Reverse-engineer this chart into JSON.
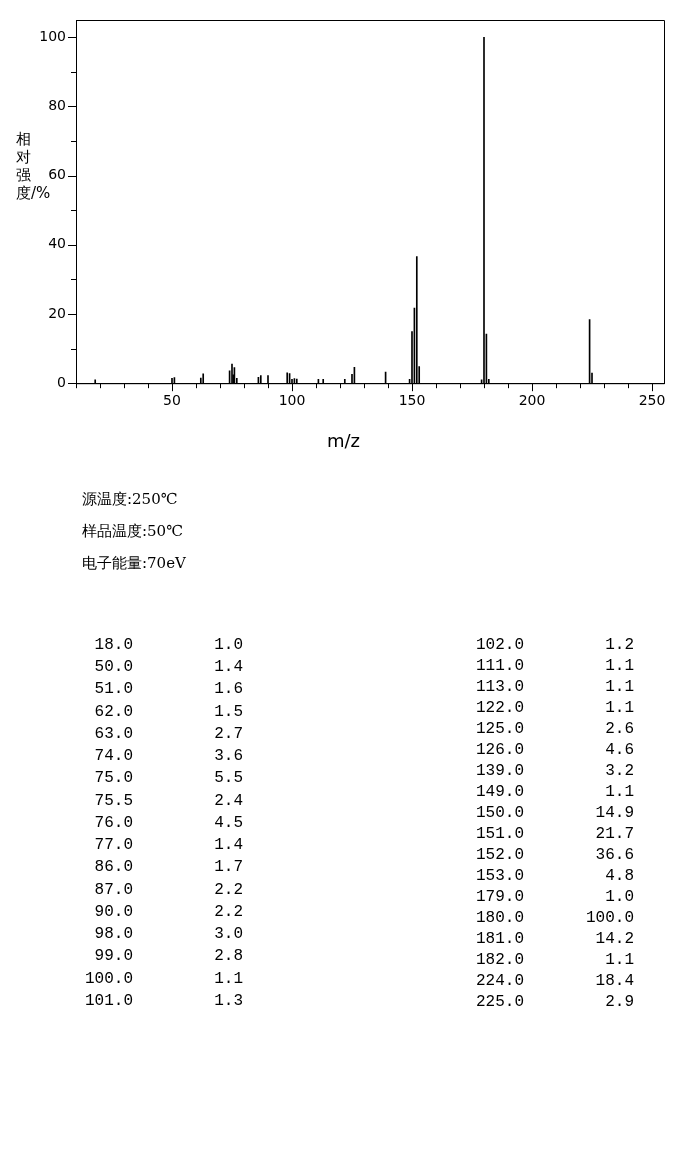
{
  "chart_data": [
    {
      "type": "bar",
      "xlabel": "m/z",
      "ylabel": "相对强度/%",
      "x": [
        18,
        50,
        51,
        62,
        63,
        74,
        75,
        75.5,
        76,
        77,
        86,
        87,
        90,
        98,
        99,
        100,
        101,
        102,
        111,
        113,
        122,
        125,
        126,
        139,
        149,
        150,
        151,
        152,
        153,
        179,
        180,
        181,
        182,
        224,
        225
      ],
      "values": [
        1.0,
        1.4,
        1.6,
        1.5,
        2.7,
        3.6,
        5.5,
        2.4,
        4.5,
        1.4,
        1.7,
        2.2,
        2.2,
        3.0,
        2.8,
        1.1,
        1.3,
        1.2,
        1.1,
        1.1,
        1.1,
        2.6,
        4.6,
        3.2,
        1.1,
        14.9,
        21.7,
        36.6,
        4.8,
        1.0,
        100.0,
        14.2,
        1.1,
        18.4,
        2.9
      ],
      "color": "#000000",
      "xlim": [
        10,
        255
      ],
      "xticks": [
        {
          "value": 10,
          "label": null
        },
        {
          "value": 20,
          "label": null
        },
        {
          "value": 30,
          "label": null
        },
        {
          "value": 40,
          "label": null
        },
        50,
        {
          "value": 60,
          "label": null
        },
        {
          "value": 70,
          "label": null
        },
        {
          "value": 80,
          "label": null
        },
        {
          "value": 90,
          "label": null
        },
        100,
        {
          "value": 110,
          "label": null
        },
        {
          "value": 120,
          "label": null
        },
        {
          "value": 130,
          "label": null
        },
        {
          "value": 140,
          "label": null
        },
        150,
        {
          "value": 160,
          "label": null
        },
        {
          "value": 170,
          "label": null
        },
        {
          "value": 180,
          "label": null
        },
        {
          "value": 190,
          "label": null
        },
        200,
        {
          "value": 210,
          "label": null
        },
        {
          "value": 220,
          "label": null
        },
        {
          "value": 230,
          "label": null
        },
        {
          "value": 240,
          "label": null
        },
        250
      ],
      "ylim": [
        0,
        105
      ],
      "yticks": [
        0,
        {
          "value": 10,
          "label": null
        },
        20,
        {
          "value": 30,
          "label": null
        },
        40,
        {
          "value": 50,
          "label": null
        },
        60,
        {
          "value": 70,
          "label": null
        },
        80,
        {
          "value": 90,
          "label": null
        },
        100
      ],
      "grid": false,
      "legend": false,
      "annotations": [
        "源温度:250℃",
        "样品温度:50℃",
        "电子能量:70eV"
      ]
    },
    {
      "type": "other",
      "annotations": [
        "18.0",
        "1.0",
        "50.0",
        "1.4",
        "51.0",
        "1.6",
        "62.0",
        "1.5",
        "63.0",
        "2.7",
        "74.0",
        "3.6",
        "75.0",
        "5.5",
        "75.5",
        "2.4",
        "76.0",
        "4.5",
        "77.0",
        "1.4",
        "86.0",
        "1.7",
        "87.0",
        "2.2",
        "90.0",
        "2.2",
        "98.0",
        "3.0",
        "99.0",
        "2.8",
        "100.0",
        "1.1",
        "101.0",
        "1.3",
        "102.0",
        "1.2",
        "111.0",
        "1.1",
        "113.0",
        "1.1",
        "122.0",
        "1.1",
        "125.0",
        "2.6",
        "126.0",
        "4.6",
        "139.0",
        "3.2",
        "149.0",
        "1.1",
        "150.0",
        "14.9",
        "151.0",
        "21.7",
        "152.0",
        "36.6",
        "153.0",
        "4.8",
        "179.0",
        "1.0",
        "180.0",
        "100.0",
        "181.0",
        "14.2",
        "182.0",
        "1.1",
        "224.0",
        "18.4",
        "225.0",
        "2.9"
      ]
    }
  ]
}
